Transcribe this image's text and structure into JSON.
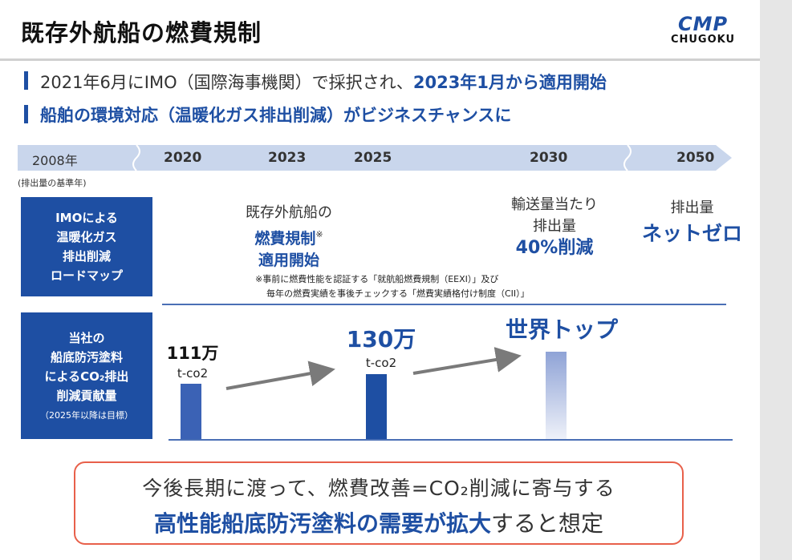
{
  "title": "既存外航船の燃費規制",
  "logo": {
    "line1": "CMP",
    "line2": "CHUGOKU"
  },
  "bullets": {
    "b1_text": "2021年6月にIMO（国際海事機関）で採択され、",
    "b1_highlight": "2023年1月から適用開始",
    "b2_text": "船舶の環境対応（温暖化ガス排出削減）がビジネスチャンスに"
  },
  "timeline": {
    "years": [
      "2008年",
      "2020",
      "2023",
      "2025",
      "2030",
      "2050"
    ],
    "baseline_note": "(排出量の基準年)"
  },
  "imo_box": {
    "lines": [
      "IMOによる",
      "温暖化ガス",
      "排出削減",
      "ロードマップ"
    ]
  },
  "company_box": {
    "lines": [
      "当社の",
      "船底防汚塗料",
      "によるCO₂排出",
      "削減貢献量"
    ],
    "note": "（2025年以降は目標）"
  },
  "roadmap": {
    "r2023": {
      "l1": "既存外航船の",
      "l2": "燃費規制",
      "mark": "※",
      "l3": "適用開始"
    },
    "r2030": {
      "l1": "輸送量当たり",
      "l2": "排出量",
      "l3": "40%削減"
    },
    "r2050": {
      "l1": "排出量",
      "l2": "ネットゼロ"
    },
    "footnote_1": "※事前に燃費性能を認証する「就航船燃費規制（EEXI）」及び",
    "footnote_2": "毎年の燃費実績を事後チェックする「燃費実績格付け制度（CII）」"
  },
  "chart_data": {
    "type": "bar",
    "categories": [
      "2020",
      "2025",
      "2030"
    ],
    "values": [
      111,
      130,
      null
    ],
    "value_labels": [
      "111万",
      "130万",
      "世界トップ"
    ],
    "unit": "t-co2"
  },
  "conclusion": {
    "line1": "今後長期に渡って、燃費改善=CO₂削減に寄与する",
    "line2_highlight": "高性能船底防汚塗料の需要が拡大",
    "line2_rest": "すると想定"
  },
  "colors": {
    "accent": "#1e4fa3",
    "border_orange": "#e8604a"
  }
}
